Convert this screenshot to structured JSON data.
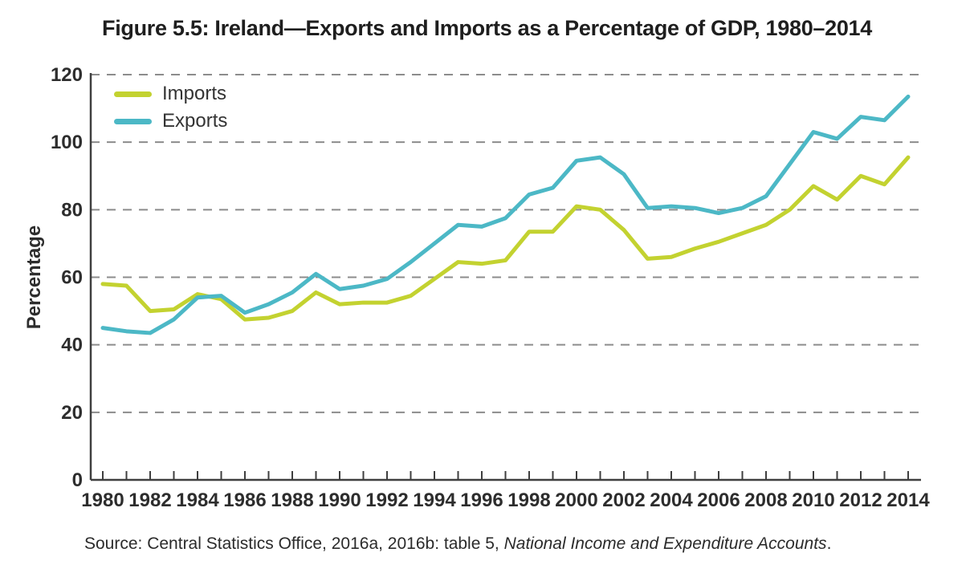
{
  "figure": {
    "title": "Figure 5.5: Ireland—Exports and Imports as a Percentage of GDP, 1980–2014",
    "source": {
      "prefix": "Source: Central Statistics Office, 2016a, 2016b: table 5, ",
      "italic": "National Income and Expenditure Accounts",
      "suffix": "."
    }
  },
  "legend": {
    "items": [
      {
        "label": "Imports",
        "color": "#c3d230"
      },
      {
        "label": "Exports",
        "color": "#4cb8c6"
      }
    ]
  },
  "axes": {
    "y_label": "Percentage",
    "y_ticks": [
      0,
      20,
      40,
      60,
      80,
      100,
      120
    ],
    "x_tick_labels": [
      "1980",
      "1982",
      "1984",
      "1986",
      "1988",
      "1990",
      "1992",
      "1994",
      "1996",
      "1998",
      "2000",
      "2002",
      "2004",
      "2006",
      "2008",
      "2010",
      "2012",
      "2014"
    ]
  },
  "colors": {
    "imports": "#c3d230",
    "exports": "#4cb8c6",
    "gridline": "#8c8c8c",
    "axis": "#3f3f3f",
    "text": "#2d2d2d"
  },
  "chart_data": {
    "type": "line",
    "title": "Figure 5.5: Ireland—Exports and Imports as a Percentage of GDP, 1980–2014",
    "xlabel": "",
    "ylabel": "Percentage",
    "ylim": [
      0,
      120
    ],
    "grid": "horizontal dashed",
    "legend_position": "top-left inside",
    "x": [
      1980,
      1981,
      1982,
      1983,
      1984,
      1985,
      1986,
      1987,
      1988,
      1989,
      1990,
      1991,
      1992,
      1993,
      1994,
      1995,
      1996,
      1997,
      1998,
      1999,
      2000,
      2001,
      2002,
      2003,
      2004,
      2005,
      2006,
      2007,
      2008,
      2009,
      2010,
      2011,
      2012,
      2013,
      2014
    ],
    "series": [
      {
        "name": "Imports",
        "color": "#c3d230",
        "values": [
          58,
          57.5,
          50,
          50.5,
          55,
          53.5,
          47.5,
          48,
          50,
          55.5,
          52,
          52.5,
          52.5,
          54.5,
          59.5,
          64.5,
          64,
          65,
          73.5,
          73.5,
          81,
          80,
          74,
          65.5,
          66,
          68.5,
          70.5,
          73,
          75.5,
          80,
          87,
          83,
          90,
          87.5,
          95.5
        ]
      },
      {
        "name": "Exports",
        "color": "#4cb8c6",
        "values": [
          45,
          44,
          43.5,
          47.5,
          54,
          54.5,
          49.5,
          52,
          55.5,
          61,
          56.5,
          57.5,
          59.5,
          64.5,
          70,
          75.5,
          75,
          77.5,
          84.5,
          86.5,
          94.5,
          95.5,
          90.5,
          80.5,
          81,
          80.5,
          79,
          80.5,
          84,
          93.5,
          103,
          101,
          107.5,
          106.5,
          113.5
        ]
      }
    ]
  }
}
